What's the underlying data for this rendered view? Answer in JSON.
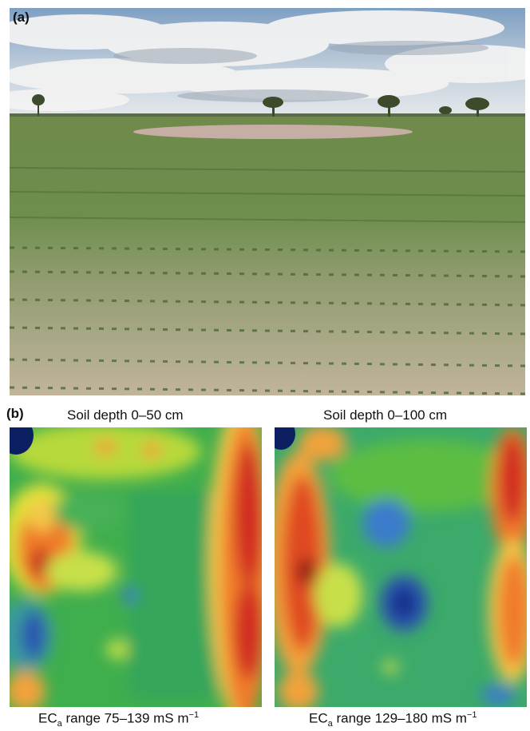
{
  "panel_a": {
    "label": "(a)"
  },
  "panel_b": {
    "label": "(b)",
    "maps": [
      {
        "title": "Soil depth 0–50 cm",
        "ec_prefix": "EC",
        "ec_sub": "a",
        "ec_text": " range 75–139 mS m",
        "ec_sup": "−1"
      },
      {
        "title": "Soil depth 0–100 cm",
        "ec_prefix": "EC",
        "ec_sub": "a",
        "ec_text": " range 129–180 mS m",
        "ec_sup": "−1"
      }
    ]
  }
}
